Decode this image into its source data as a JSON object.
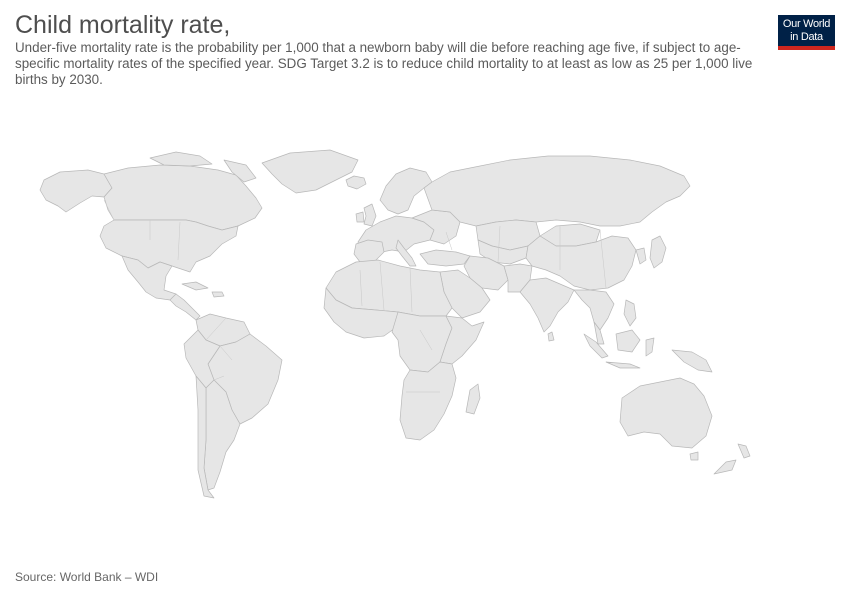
{
  "header": {
    "title": "Child mortality rate,",
    "subtitle": "Under-five mortality rate is the probability per 1,000 that a newborn baby will die before reaching age five, if subject to age-specific mortality rates of the specified year. SDG Target 3.2 is to reduce child mortality to at least as low as 25 per 1,000 live births by 2030."
  },
  "logo": {
    "line1": "Our World",
    "line2": "in Data"
  },
  "footer": {
    "source": "Source: World Bank – WDI"
  },
  "map": {
    "fill": "#e6e6e6",
    "stroke": "#b8b8b8",
    "data_state": "no data"
  }
}
